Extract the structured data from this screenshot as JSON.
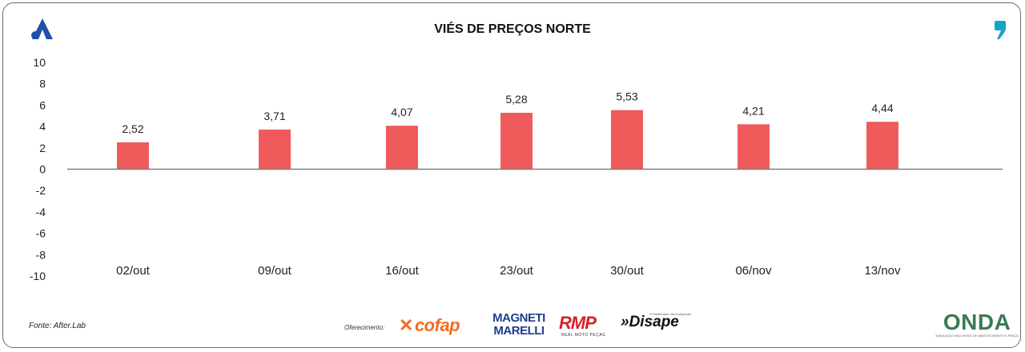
{
  "chart_data": {
    "type": "bar",
    "title": "VIÉS DE PREÇOS NORTE",
    "categories": [
      "02/out",
      "09/out",
      "16/out",
      "23/out",
      "30/out",
      "06/nov",
      "13/nov"
    ],
    "values": [
      2.52,
      3.71,
      4.07,
      5.28,
      5.53,
      4.21,
      4.44
    ],
    "value_labels": [
      "2,52",
      "3,71",
      "4,07",
      "5,28",
      "5,53",
      "4,21",
      "4,44"
    ],
    "ylim": [
      -10,
      10
    ],
    "yticks": [
      10,
      8,
      6,
      4,
      2,
      0,
      -2,
      -4,
      -6,
      -8,
      -10
    ],
    "ytick_labels": [
      "10",
      "8",
      "6",
      "4",
      "2",
      "0",
      "-2",
      "-4",
      "-6",
      "-8",
      "-10"
    ],
    "bar_color": "#ef5b5b",
    "axis_color": "#7f7f7f",
    "grid": false,
    "legend": false
  },
  "footer": {
    "source": "Fonte: After.Lab",
    "sponsor_label": "Oferecimento:",
    "sponsors": {
      "cofap": "cofap",
      "magneti_line1": "MAGNETI",
      "magneti_line2": "MARELLI",
      "rmp": "RMP",
      "rmp_sub": "REAL MOTO PEÇAS",
      "disape": "»Disape",
      "disape_sub": "O Distribuidor das Autopeças",
      "onda": "ONDA",
      "onda_sub": "TABULAÇÃO NÃO NÍVEIS DE ABASTECIMENTO E PREÇO"
    }
  },
  "colors": {
    "brand_blue": "#1f4fa8",
    "brand_teal": "#17a4c4",
    "cofap_orange": "#f26b21",
    "magneti_blue": "#1d3d8f",
    "rmp_red": "#d6222a"
  },
  "icons": {
    "top_left": "brand-a-logo",
    "top_right": "quote-mark-icon"
  }
}
